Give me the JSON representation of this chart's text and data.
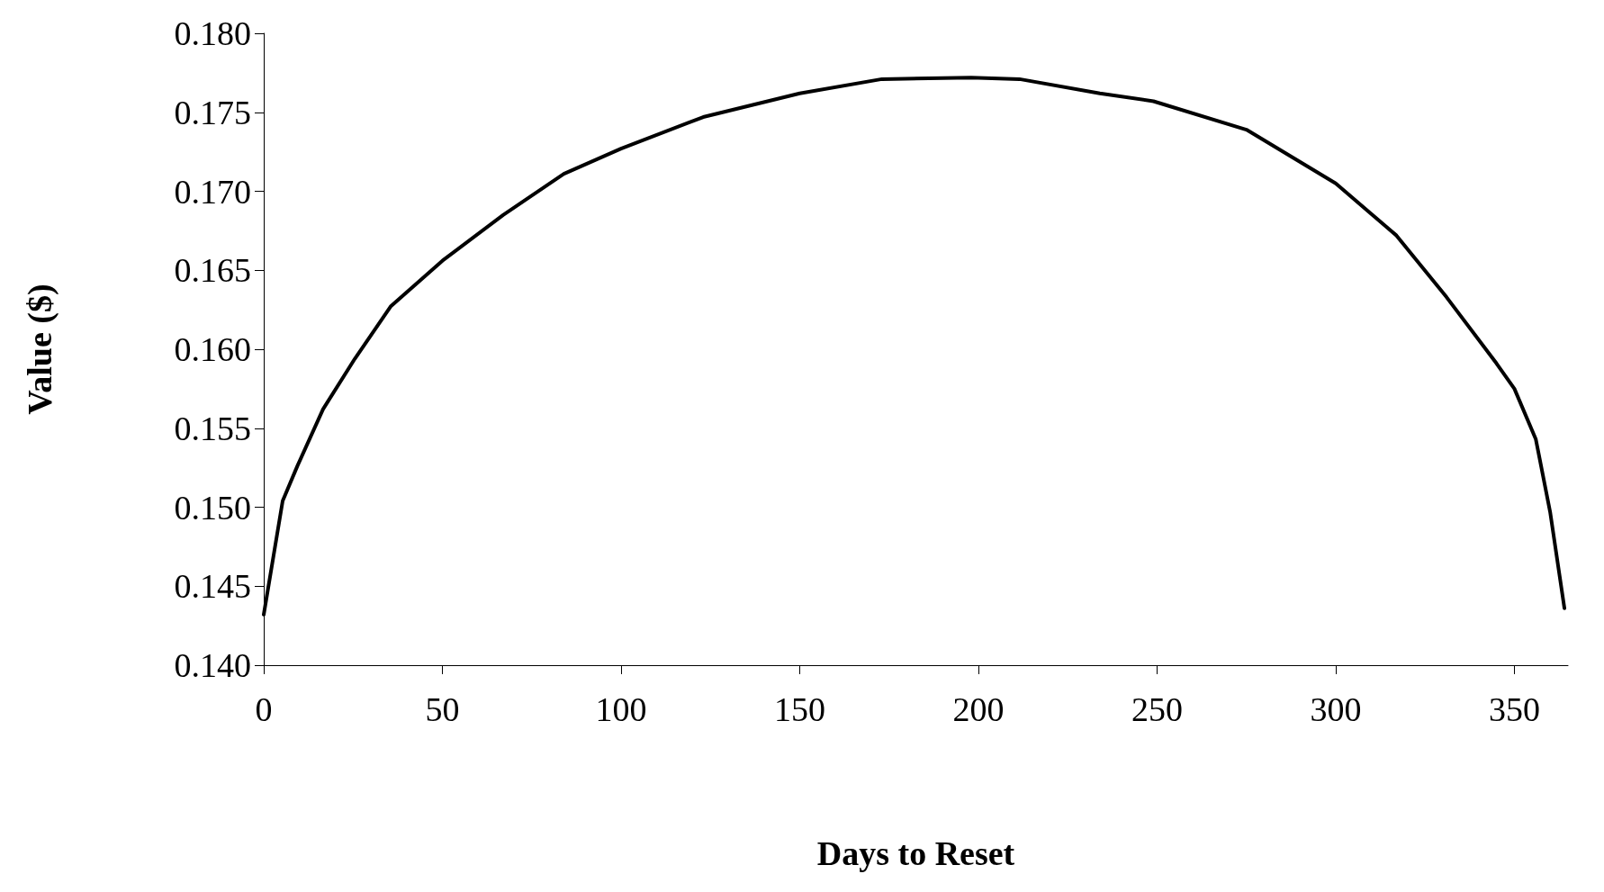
{
  "chart_data": {
    "type": "line",
    "xlabel": "Days to Reset",
    "ylabel": "Value ($)",
    "series": [
      {
        "color": "#000000",
        "x": [
          0,
          5.3,
          9.4,
          16.6,
          25.5,
          35.5,
          50,
          67,
          84,
          100,
          123,
          150,
          173,
          198,
          211.5,
          234,
          249,
          275,
          300,
          317,
          331,
          345,
          350,
          356,
          360,
          364
        ],
        "values": [
          0.1432,
          0.1504,
          0.1526,
          0.1562,
          0.1594,
          0.1627,
          0.1656,
          0.1685,
          0.1711,
          0.1727,
          0.1747,
          0.1762,
          0.1771,
          0.1772,
          0.1771,
          0.1762,
          0.1757,
          0.1739,
          0.1705,
          0.1672,
          0.1633,
          0.1591,
          0.1575,
          0.1543,
          0.1497,
          0.1436
        ]
      }
    ],
    "xlim": [
      0,
      365
    ],
    "xticks": [
      0,
      50,
      100,
      150,
      200,
      250,
      300,
      350
    ],
    "ylim": [
      0.14,
      0.18
    ],
    "yticks": [
      {
        "value": 0.14,
        "label": "0.140"
      },
      {
        "value": 0.145,
        "label": "0.145"
      },
      {
        "value": 0.15,
        "label": "0.150"
      },
      {
        "value": 0.155,
        "label": "0.155"
      },
      {
        "value": 0.16,
        "label": "0.160"
      },
      {
        "value": 0.165,
        "label": "0.165"
      },
      {
        "value": 0.17,
        "label": "0.170"
      },
      {
        "value": 0.175,
        "label": "0.175"
      },
      {
        "value": 0.18,
        "label": "0.180"
      }
    ],
    "grid": false,
    "marker": "none",
    "line_style": "solid"
  }
}
